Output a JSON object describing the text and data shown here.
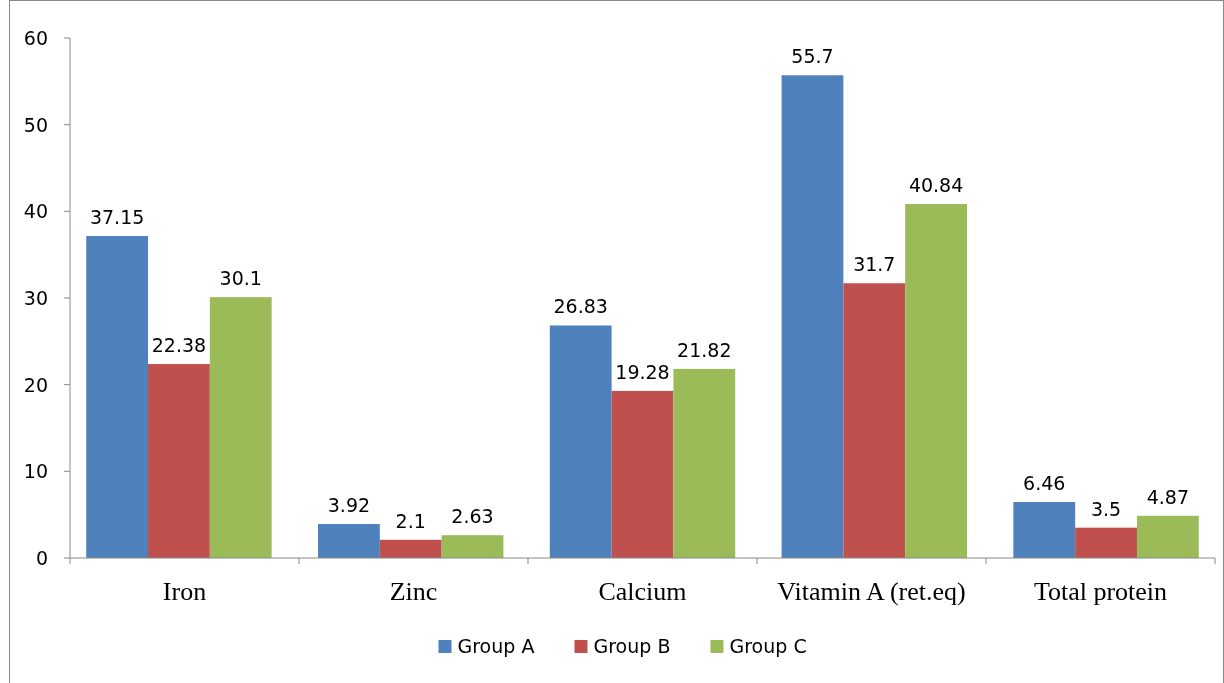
{
  "chart_data": {
    "type": "bar",
    "categories": [
      "Iron",
      "Zinc",
      "Calcium",
      "Vitamin A (ret.eq)",
      "Total protein"
    ],
    "series": [
      {
        "name": "Group A",
        "color": "#4f81bd",
        "values": [
          37.15,
          3.92,
          26.83,
          55.7,
          6.46
        ]
      },
      {
        "name": "Group B",
        "color": "#c0504d",
        "values": [
          22.38,
          2.1,
          19.28,
          31.7,
          3.5
        ]
      },
      {
        "name": "Group C",
        "color": "#9bbb59",
        "values": [
          30.1,
          2.63,
          21.82,
          40.84,
          4.87
        ]
      }
    ],
    "ylim": [
      0,
      60
    ],
    "yticks": [
      0,
      10,
      20,
      30,
      40,
      50,
      60
    ],
    "grid": false,
    "legend": "bottom",
    "data_labels": true
  }
}
